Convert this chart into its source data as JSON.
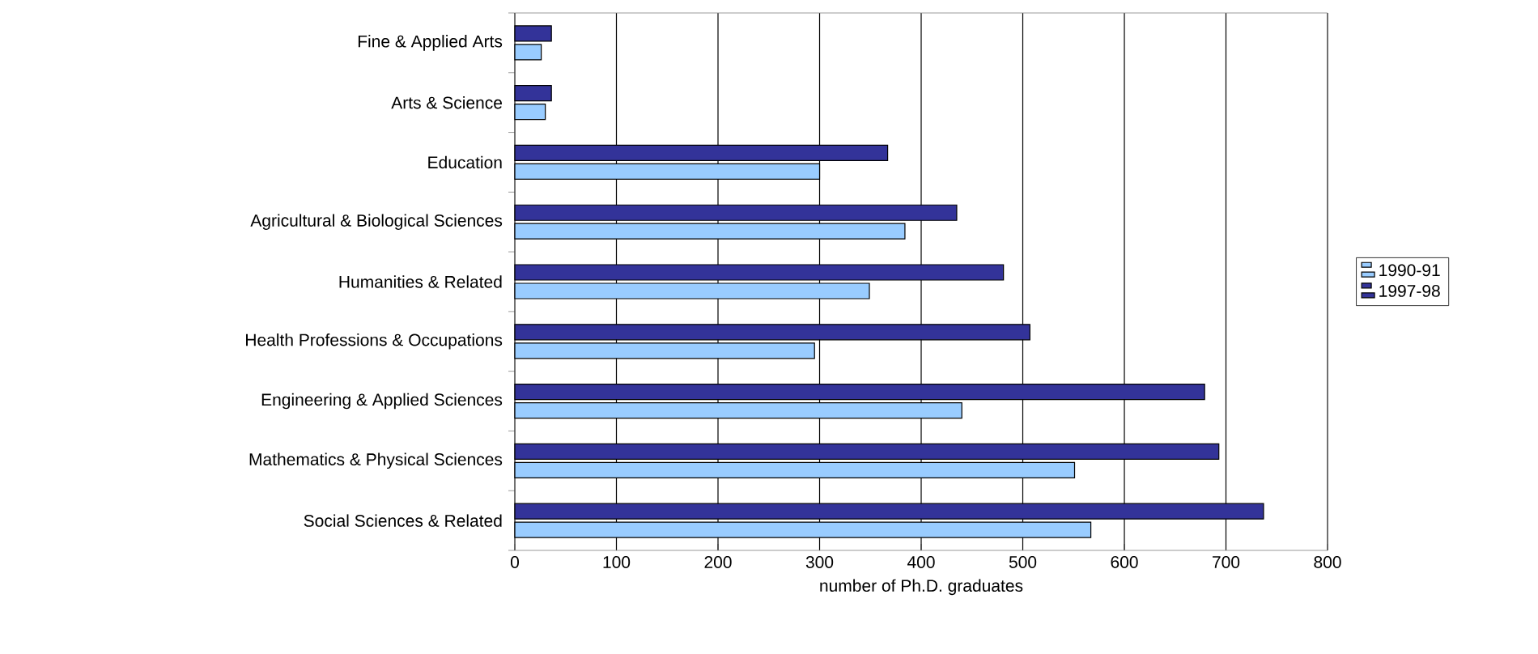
{
  "chart_data": {
    "type": "bar",
    "orientation": "horizontal",
    "xlabel": "number of Ph.D. graduates",
    "categories": [
      "Fine & Applied Arts",
      "Arts & Science",
      "Education",
      "Agricultural & Biological Sciences",
      "Humanities & Related",
      "Health Professions & Occupations",
      "Engineering & Applied Sciences",
      "Mathematics & Physical Sciences",
      "Social Sciences & Related"
    ],
    "series": [
      {
        "name": "1990-91",
        "color": "#99ccff",
        "values": [
          26,
          30,
          300,
          384,
          349,
          295,
          440,
          551,
          567
        ]
      },
      {
        "name": "1997-98",
        "color": "#333399",
        "values": [
          36,
          36,
          367,
          435,
          481,
          507,
          679,
          693,
          737
        ]
      }
    ],
    "xlim": [
      0,
      800
    ],
    "xticks": [
      0,
      100,
      200,
      300,
      400,
      500,
      600,
      700,
      800
    ],
    "grid": "x",
    "legend": "right"
  }
}
